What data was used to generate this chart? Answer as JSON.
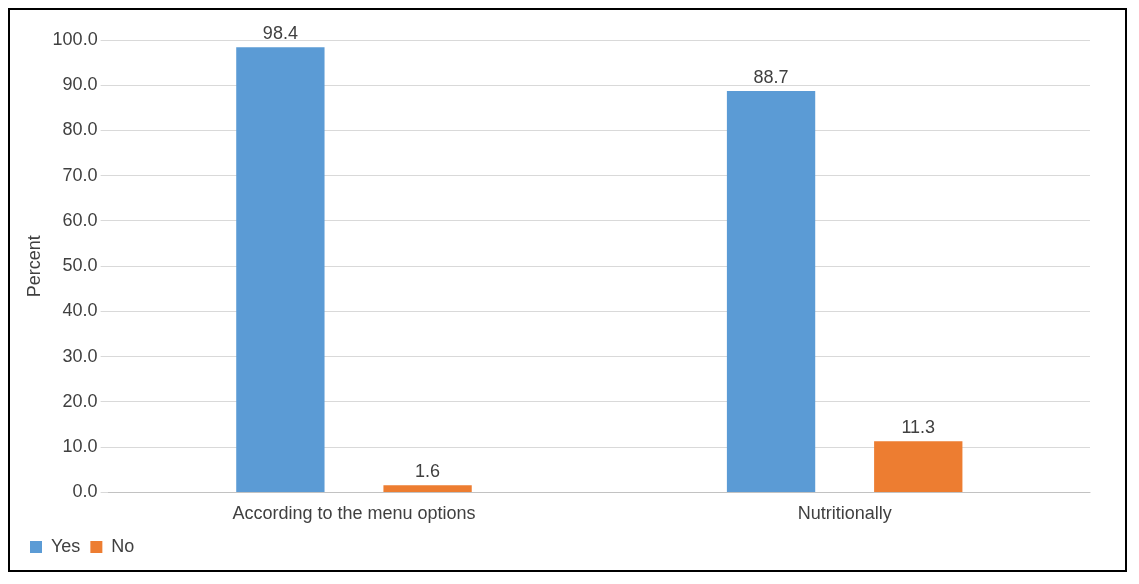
{
  "chart_data": {
    "type": "bar",
    "ylabel": "Percent",
    "categories": [
      "According to the menu options",
      "Nutritionally"
    ],
    "series": [
      {
        "name": "Yes",
        "color": "#5b9bd5",
        "values": [
          98.4,
          88.7
        ]
      },
      {
        "name": "No",
        "color": "#ed7d31",
        "values": [
          1.6,
          11.3
        ]
      }
    ],
    "ylim": [
      0,
      100
    ],
    "yticks": [
      {
        "value": 0,
        "label": "0.0"
      },
      {
        "value": 10,
        "label": "10.0"
      },
      {
        "value": 20,
        "label": "20.0"
      },
      {
        "value": 30,
        "label": "30.0"
      },
      {
        "value": 40,
        "label": "40.0"
      },
      {
        "value": 50,
        "label": "50.0"
      },
      {
        "value": 60,
        "label": "60.0"
      },
      {
        "value": 70,
        "label": "70.0"
      },
      {
        "value": 80,
        "label": "80.0"
      },
      {
        "value": 90,
        "label": "90.0"
      },
      {
        "value": 100,
        "label": "100.0"
      }
    ],
    "grid": "y",
    "legend": "bottom left",
    "data_labels": true
  }
}
